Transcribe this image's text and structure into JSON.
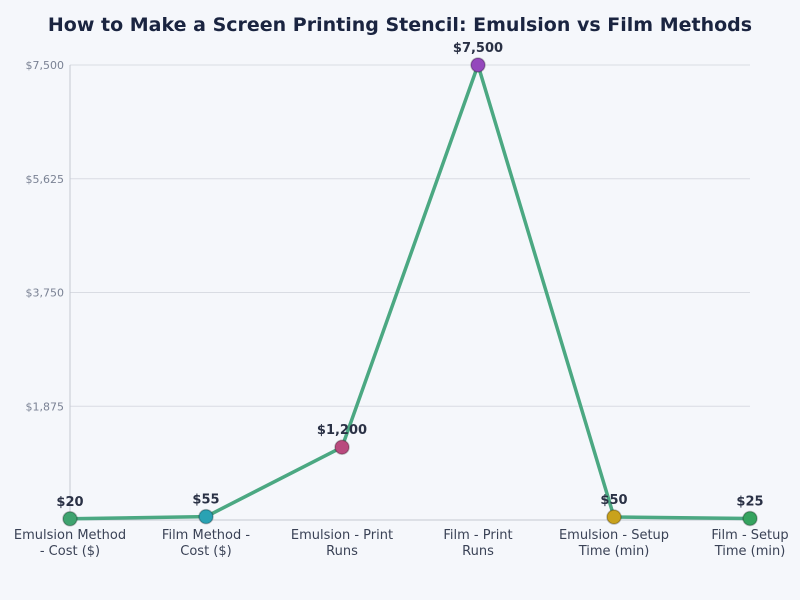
{
  "title": "How to Make a Screen Printing Stencil: Emulsion vs Film Methods",
  "colors": {
    "background": "#f5f7fb",
    "line": "#4ba882",
    "grid": "#d9dce3",
    "axis": "#c5c9d2",
    "title": "#1a2440"
  },
  "chart_data": {
    "type": "line",
    "title": "How to Make a Screen Printing Stencil: Emulsion vs Film Methods",
    "xlabel": "",
    "ylabel": "",
    "categories": [
      "Emulsion Method - Cost ($)",
      "Film Method - Cost ($)",
      "Emulsion - Print Runs",
      "Film - Print Runs",
      "Emulsion - Setup Time (min)",
      "Film - Setup Time (min)"
    ],
    "values": [
      20,
      55,
      1200,
      7500,
      50,
      25
    ],
    "data_labels": [
      "$20",
      "$55",
      "$1,200",
      "$7,500",
      "$50",
      "$25"
    ],
    "marker_colors": [
      "#3fa36f",
      "#2aa2b3",
      "#b94a7e",
      "#9448bc",
      "#c9a21c",
      "#35a35f"
    ],
    "ylim": [
      0,
      7500
    ],
    "yticks": [
      1875,
      3750,
      5625,
      7500
    ],
    "ytick_labels": [
      "$1,875",
      "$3,750",
      "$5,625",
      "$7,500"
    ],
    "grid": true,
    "legend": null
  }
}
